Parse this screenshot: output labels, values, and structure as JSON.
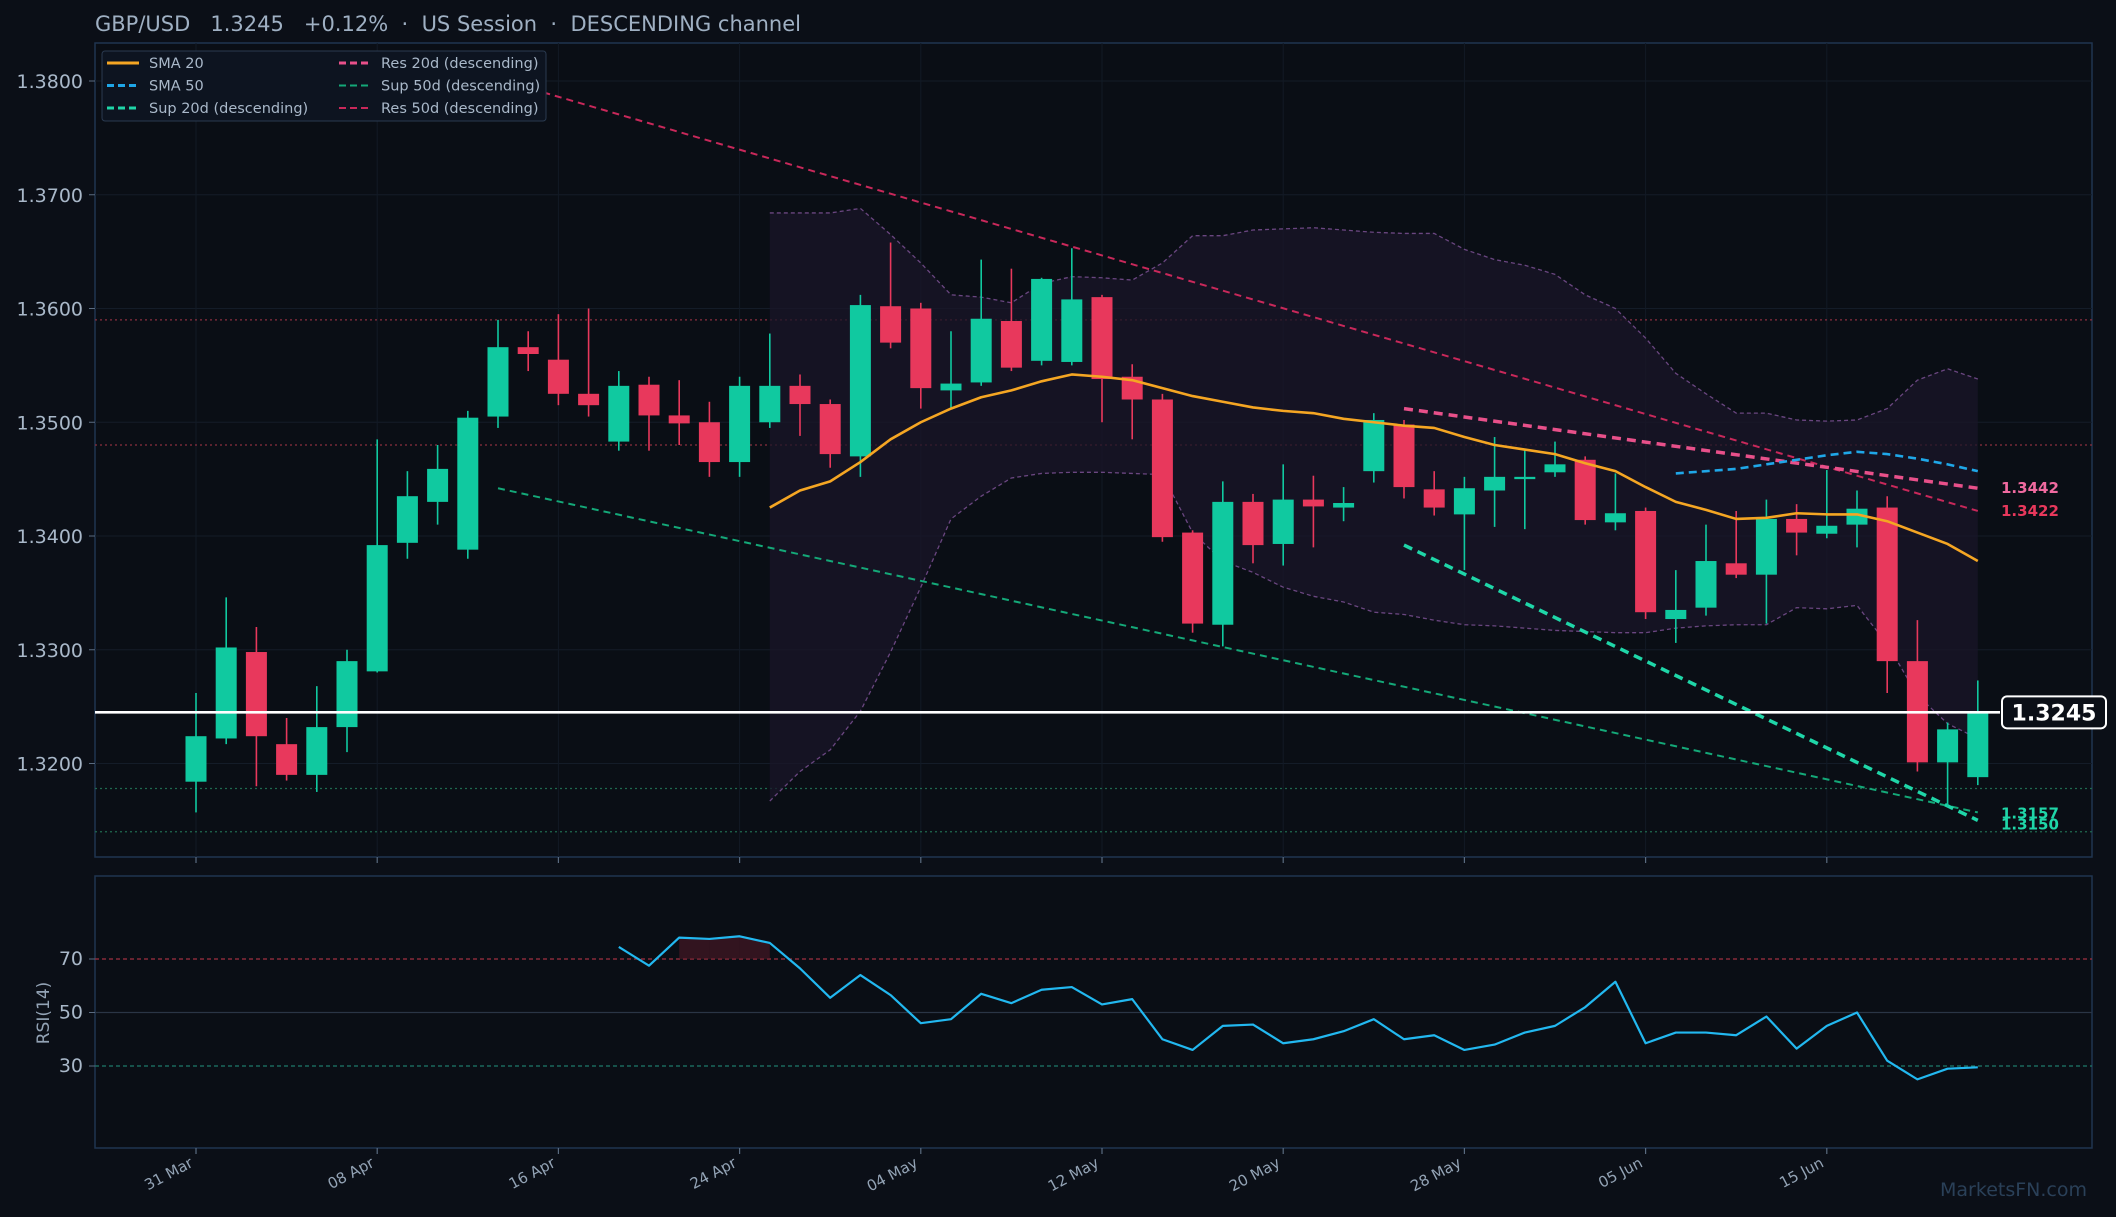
{
  "header": {
    "pair": "GBP/USD",
    "price": "1.3245",
    "change": "+0.12%",
    "session": "US Session",
    "channel": "DESCENDING channel",
    "separator": "·"
  },
  "watermark": "MarketsFN.com",
  "current_price_label": "1.3245",
  "colors": {
    "background": "#0b0f17",
    "up": "#10c9a0",
    "down": "#e8385c",
    "sma20": "#f5a623",
    "sma50": "#1fa7e8",
    "sup20": "#1fd6a8",
    "res20": "#e8508a",
    "sup50": "#14a878",
    "res50": "#c8285a",
    "rsi": "#22b8f0",
    "price_line": "#ffffff"
  },
  "legend": [
    {
      "label": "SMA 20",
      "key": "sma20",
      "dash": "solid"
    },
    {
      "label": "SMA 50",
      "key": "sma50",
      "dash": "dashed"
    },
    {
      "label": "Sup 20d (descending)",
      "key": "sup20",
      "dash": "dashed"
    },
    {
      "label": "Res 20d (descending)",
      "key": "res20",
      "dash": "dashed"
    },
    {
      "label": "Sup 50d (descending)",
      "key": "sup50",
      "dash": "dashed"
    },
    {
      "label": "Res 50d (descending)",
      "key": "res50",
      "dash": "dashed"
    }
  ],
  "rsi_panel": {
    "label": "RSI(14)",
    "ticks": [
      "70",
      "50",
      "30"
    ]
  },
  "side_labels": [
    {
      "text": "1.3442",
      "color": "#f06aa0"
    },
    {
      "text": "1.3422",
      "color": "#e8385c"
    },
    {
      "text": "1.3157",
      "color": "#1fd6a8"
    },
    {
      "text": "1.3150",
      "color": "#1fd6a8"
    }
  ],
  "chart_data": {
    "type": "candlestick",
    "x_tick_labels": [
      "31 Mar",
      "08 Apr",
      "16 Apr",
      "24 Apr",
      "04 May",
      "12 May",
      "20 May",
      "28 May",
      "05 Jun",
      "15 Jun"
    ],
    "y_tick_labels": [
      "1.3800",
      "1.3700",
      "1.3600",
      "1.3500",
      "1.3400",
      "1.3300",
      "1.3200"
    ],
    "ylim": [
      1.3118,
      1.3835
    ],
    "candles": [
      {
        "o": 1.3184,
        "h": 1.3262,
        "l": 1.3157,
        "c": 1.3224
      },
      {
        "o": 1.3222,
        "h": 1.3346,
        "l": 1.3217,
        "c": 1.3302
      },
      {
        "o": 1.3298,
        "h": 1.332,
        "l": 1.318,
        "c": 1.3224
      },
      {
        "o": 1.3217,
        "h": 1.324,
        "l": 1.3185,
        "c": 1.319
      },
      {
        "o": 1.319,
        "h": 1.3268,
        "l": 1.3175,
        "c": 1.3232
      },
      {
        "o": 1.3232,
        "h": 1.33,
        "l": 1.321,
        "c": 1.329
      },
      {
        "o": 1.3281,
        "h": 1.3485,
        "l": 1.328,
        "c": 1.3392
      },
      {
        "o": 1.3394,
        "h": 1.3457,
        "l": 1.338,
        "c": 1.3435
      },
      {
        "o": 1.343,
        "h": 1.348,
        "l": 1.341,
        "c": 1.3459
      },
      {
        "o": 1.3388,
        "h": 1.351,
        "l": 1.338,
        "c": 1.3504
      },
      {
        "o": 1.3505,
        "h": 1.359,
        "l": 1.3495,
        "c": 1.3566
      },
      {
        "o": 1.3566,
        "h": 1.358,
        "l": 1.3545,
        "c": 1.356
      },
      {
        "o": 1.3555,
        "h": 1.3595,
        "l": 1.3515,
        "c": 1.3525
      },
      {
        "o": 1.3525,
        "h": 1.36,
        "l": 1.3505,
        "c": 1.3515
      },
      {
        "o": 1.3483,
        "h": 1.3545,
        "l": 1.3475,
        "c": 1.3532
      },
      {
        "o": 1.3533,
        "h": 1.354,
        "l": 1.3475,
        "c": 1.3506
      },
      {
        "o": 1.3506,
        "h": 1.3537,
        "l": 1.348,
        "c": 1.3499
      },
      {
        "o": 1.35,
        "h": 1.3518,
        "l": 1.3452,
        "c": 1.3465
      },
      {
        "o": 1.3465,
        "h": 1.354,
        "l": 1.3452,
        "c": 1.3532
      },
      {
        "o": 1.35,
        "h": 1.3578,
        "l": 1.3495,
        "c": 1.3532
      },
      {
        "o": 1.3532,
        "h": 1.3542,
        "l": 1.3488,
        "c": 1.3516
      },
      {
        "o": 1.3516,
        "h": 1.352,
        "l": 1.346,
        "c": 1.3472
      },
      {
        "o": 1.347,
        "h": 1.3612,
        "l": 1.3452,
        "c": 1.3603
      },
      {
        "o": 1.3602,
        "h": 1.3658,
        "l": 1.3565,
        "c": 1.357
      },
      {
        "o": 1.36,
        "h": 1.3605,
        "l": 1.3512,
        "c": 1.353
      },
      {
        "o": 1.3528,
        "h": 1.358,
        "l": 1.3512,
        "c": 1.3534
      },
      {
        "o": 1.3535,
        "h": 1.3643,
        "l": 1.3532,
        "c": 1.3591
      },
      {
        "o": 1.3589,
        "h": 1.3635,
        "l": 1.3545,
        "c": 1.3548
      },
      {
        "o": 1.3554,
        "h": 1.3627,
        "l": 1.355,
        "c": 1.3626
      },
      {
        "o": 1.3553,
        "h": 1.3653,
        "l": 1.355,
        "c": 1.3608
      },
      {
        "o": 1.361,
        "h": 1.3612,
        "l": 1.35,
        "c": 1.3538
      },
      {
        "o": 1.354,
        "h": 1.3551,
        "l": 1.3485,
        "c": 1.352
      },
      {
        "o": 1.352,
        "h": 1.3525,
        "l": 1.3395,
        "c": 1.3399
      },
      {
        "o": 1.3403,
        "h": 1.3405,
        "l": 1.3315,
        "c": 1.3323
      },
      {
        "o": 1.3322,
        "h": 1.3448,
        "l": 1.3303,
        "c": 1.343
      },
      {
        "o": 1.343,
        "h": 1.3437,
        "l": 1.3376,
        "c": 1.3392
      },
      {
        "o": 1.3393,
        "h": 1.3463,
        "l": 1.3374,
        "c": 1.3432
      },
      {
        "o": 1.3432,
        "h": 1.3453,
        "l": 1.339,
        "c": 1.3426
      },
      {
        "o": 1.3425,
        "h": 1.3443,
        "l": 1.3413,
        "c": 1.3429
      },
      {
        "o": 1.3457,
        "h": 1.3508,
        "l": 1.3447,
        "c": 1.3502
      },
      {
        "o": 1.3498,
        "h": 1.3502,
        "l": 1.3433,
        "c": 1.3443
      },
      {
        "o": 1.3441,
        "h": 1.3457,
        "l": 1.3418,
        "c": 1.3425
      },
      {
        "o": 1.3419,
        "h": 1.3452,
        "l": 1.337,
        "c": 1.3442
      },
      {
        "o": 1.344,
        "h": 1.3487,
        "l": 1.3408,
        "c": 1.3452
      },
      {
        "o": 1.345,
        "h": 1.3476,
        "l": 1.3406,
        "c": 1.3452
      },
      {
        "o": 1.3456,
        "h": 1.3483,
        "l": 1.3452,
        "c": 1.3463
      },
      {
        "o": 1.3467,
        "h": 1.347,
        "l": 1.341,
        "c": 1.3414
      },
      {
        "o": 1.3412,
        "h": 1.3455,
        "l": 1.3405,
        "c": 1.342
      },
      {
        "o": 1.3422,
        "h": 1.3425,
        "l": 1.3327,
        "c": 1.3333
      },
      {
        "o": 1.3327,
        "h": 1.337,
        "l": 1.3306,
        "c": 1.3335
      },
      {
        "o": 1.3337,
        "h": 1.341,
        "l": 1.333,
        "c": 1.3378
      },
      {
        "o": 1.3376,
        "h": 1.3422,
        "l": 1.3363,
        "c": 1.3366
      },
      {
        "o": 1.3366,
        "h": 1.3432,
        "l": 1.3323,
        "c": 1.3415
      },
      {
        "o": 1.3415,
        "h": 1.3428,
        "l": 1.3383,
        "c": 1.3403
      },
      {
        "o": 1.3402,
        "h": 1.3458,
        "l": 1.3398,
        "c": 1.3409
      },
      {
        "o": 1.341,
        "h": 1.344,
        "l": 1.339,
        "c": 1.3424
      },
      {
        "o": 1.3425,
        "h": 1.3435,
        "l": 1.3262,
        "c": 1.329
      },
      {
        "o": 1.329,
        "h": 1.3326,
        "l": 1.3193,
        "c": 1.3201
      },
      {
        "o": 1.3201,
        "h": 1.3236,
        "l": 1.3162,
        "c": 1.323
      },
      {
        "o": 1.3188,
        "h": 1.3273,
        "l": 1.3181,
        "c": 1.3245
      }
    ],
    "sma20": {
      "start_index": 19,
      "values": [
        1.3425,
        1.344,
        1.3448,
        1.3465,
        1.3485,
        1.35,
        1.3512,
        1.3522,
        1.3528,
        1.3536,
        1.3542,
        1.354,
        1.3537,
        1.353,
        1.3523,
        1.3518,
        1.3513,
        1.351,
        1.3508,
        1.3503,
        1.35,
        1.3497,
        1.3495,
        1.3487,
        1.348,
        1.3476,
        1.3472,
        1.3464,
        1.3457,
        1.3443,
        1.343,
        1.3423,
        1.3415,
        1.3416,
        1.342,
        1.3419,
        1.3419,
        1.3413,
        1.3403,
        1.3393,
        1.3378
      ]
    },
    "sma50": {
      "start_index": 49,
      "values": [
        1.3455,
        1.3457,
        1.3459,
        1.3463,
        1.3467,
        1.3471,
        1.3474,
        1.3472,
        1.3468,
        1.3463,
        1.3457
      ]
    },
    "bollinger": {
      "start_index": 19,
      "upper": [
        1.3684,
        1.3684,
        1.3684,
        1.3688,
        1.3665,
        1.364,
        1.3612,
        1.361,
        1.3605,
        1.3622,
        1.3628,
        1.3627,
        1.3625,
        1.364,
        1.3664,
        1.3664,
        1.3669,
        1.367,
        1.3671,
        1.3669,
        1.3667,
        1.3666,
        1.3666,
        1.3652,
        1.3643,
        1.3638,
        1.363,
        1.3612,
        1.36,
        1.3574,
        1.3543,
        1.3525,
        1.3508,
        1.3508,
        1.3502,
        1.3501,
        1.3502,
        1.3512,
        1.3537,
        1.3547,
        1.3538
      ],
      "lower": [
        1.3167,
        1.3193,
        1.3212,
        1.3246,
        1.3298,
        1.3355,
        1.3415,
        1.3435,
        1.3451,
        1.3455,
        1.3456,
        1.3456,
        1.3455,
        1.3454,
        1.3403,
        1.3378,
        1.3368,
        1.3355,
        1.3347,
        1.3342,
        1.3333,
        1.3331,
        1.3326,
        1.3322,
        1.3321,
        1.3319,
        1.3317,
        1.3316,
        1.3315,
        1.3315,
        1.3319,
        1.3321,
        1.3322,
        1.3322,
        1.3337,
        1.3336,
        1.3339,
        1.3305,
        1.326,
        1.3235,
        1.3222
      ]
    },
    "lines": {
      "res50": {
        "from": [
          -999,
          1.3835
        ],
        "points": [
          [
            11.5,
            1.379
          ],
          [
            59,
            1.3422
          ]
        ]
      },
      "sup50": {
        "points": [
          [
            10,
            1.3442
          ],
          [
            59,
            1.3157
          ]
        ]
      },
      "res20": {
        "points": [
          [
            40,
            1.3512
          ],
          [
            59,
            1.3442
          ]
        ]
      },
      "sup20": {
        "points": [
          [
            40,
            1.3392
          ],
          [
            59,
            1.315
          ]
        ]
      }
    },
    "horizontal_levels": [
      {
        "value": 1.359,
        "color": "#8a2f3f"
      },
      {
        "value": 1.348,
        "color": "#8a2f3f"
      },
      {
        "value": 1.3178,
        "color": "#1f6a4f"
      },
      {
        "value": 1.314,
        "color": "#1f6a4f"
      }
    ],
    "current_price": 1.3245,
    "rsi": {
      "start_index": 14,
      "ylim": [
        0,
        100
      ],
      "levels": [
        70,
        50,
        30
      ],
      "values": [
        74.5,
        67.5,
        78.0,
        77.5,
        78.5,
        76.0,
        66.5,
        55.5,
        64.0,
        56.5,
        46.0,
        47.5,
        57.0,
        53.5,
        58.5,
        59.5,
        53.0,
        55.0,
        40.0,
        36.0,
        45.0,
        45.5,
        38.5,
        40.0,
        43.0,
        47.5,
        40.0,
        41.5,
        36.0,
        38.0,
        42.5,
        45.0,
        52.0,
        61.5,
        38.5,
        42.5,
        42.5,
        41.5,
        48.5,
        36.5,
        45.0,
        50.0,
        32.0,
        25.0,
        29.0,
        29.5
      ]
    }
  }
}
